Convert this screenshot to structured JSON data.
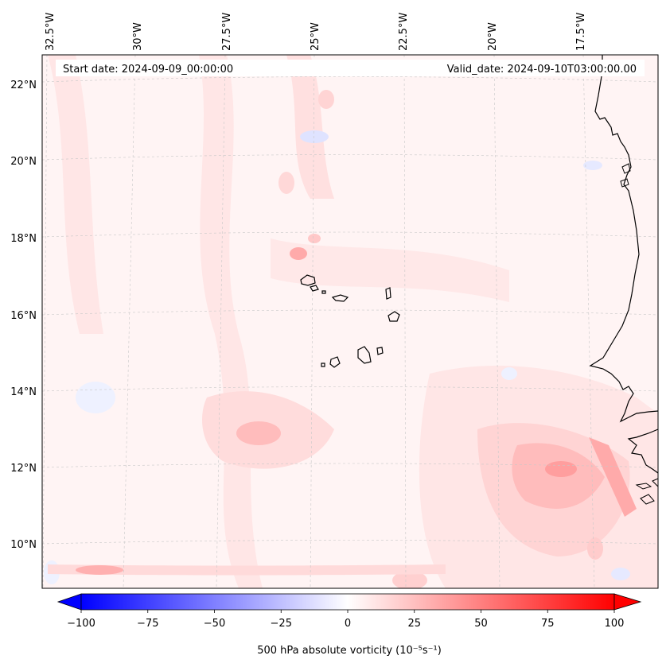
{
  "map": {
    "start_date": "Start date: 2024-09-09_00:00:00",
    "valid_date": "Valid_date: 2024-09-10T03:00:00.00",
    "longitude_labels": [
      "32.5°W",
      "30°W",
      "27.5°W",
      "25°W",
      "22.5°W",
      "20°W",
      "17.5°W"
    ],
    "latitude_labels": [
      "22°N",
      "20°N",
      "18°N",
      "16°N",
      "14°N",
      "12°N",
      "10°N"
    ],
    "colorbar": {
      "label": "500 hPa absolute vorticity (10⁻⁵s⁻¹)",
      "ticks": [
        "−100",
        "−75",
        "−50",
        "−25",
        "0",
        "25",
        "50",
        "75",
        "100"
      ],
      "min": -100,
      "max": 100,
      "low_color": "#0000ff",
      "mid_color": "#ffffff",
      "high_color": "#ff0000"
    },
    "field_colors": {
      "background": "#fff4f4",
      "light_pink": "#ffe0e0",
      "medium_pink": "#ffc8c8",
      "strong_pink": "#ffaaaa",
      "light_blue": "#eef2ff",
      "blue": "#d8dcff"
    }
  }
}
